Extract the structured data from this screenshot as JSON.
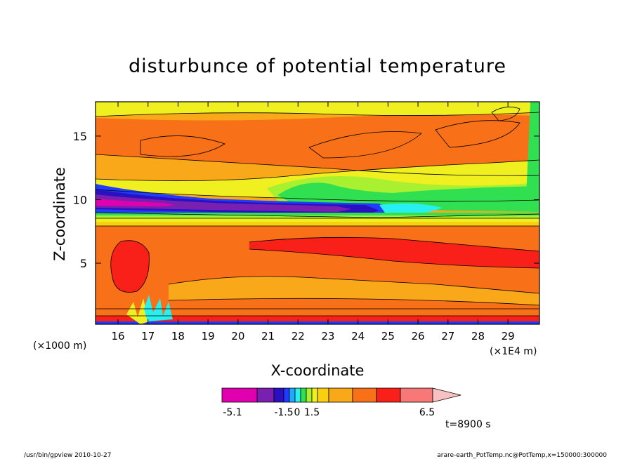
{
  "chart_data": {
    "type": "heatmap",
    "title": "disturbunce of potential temperature",
    "xlabel": "X-coordinate",
    "ylabel": "Z-coordinate",
    "x_unit_left": "(×1000 m)",
    "x_unit_right": "(×1E4 m)",
    "xlim": [
      15.25,
      30.05
    ],
    "ylim": [
      0.2,
      17.7
    ],
    "x_ticks": [
      "16",
      "17",
      "18",
      "19",
      "20",
      "21",
      "22",
      "23",
      "24",
      "25",
      "26",
      "27",
      "28",
      "29"
    ],
    "y_ticks": [
      "5",
      "10",
      "15"
    ],
    "grid": false,
    "colorbar": {
      "colors": [
        "#e000b0",
        "#7a20b0",
        "#2a10c0",
        "#1f3cff",
        "#1ea8ff",
        "#28f0f0",
        "#30e050",
        "#a8f030",
        "#f0f020",
        "#f8d010",
        "#f8a818",
        "#f87018",
        "#f82018",
        "#f87878",
        "#f8c0c0"
      ],
      "tick_labels": [
        "-5.1",
        "-1.5",
        "0",
        "1.5",
        "6.5"
      ],
      "tick_level_index": [
        0,
        3,
        5,
        7,
        14
      ]
    },
    "time_label": "t=8900 s"
  },
  "footer": {
    "left": "/usr/bin/gpview   2010-10-27",
    "right": "arare-earth_PotTemp.nc@PotTemp,x=150000:300000"
  }
}
